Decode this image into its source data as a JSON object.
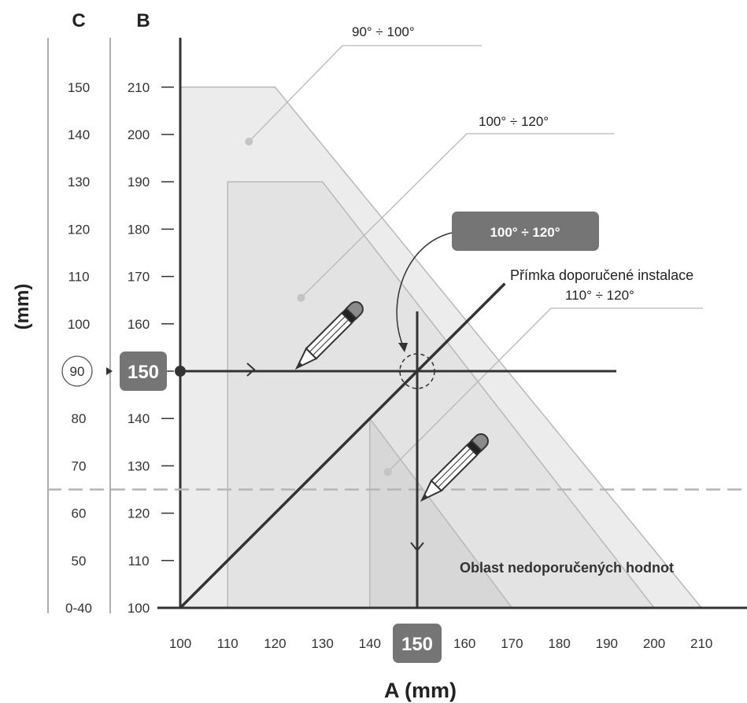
{
  "chart_data": {
    "type": "line",
    "axis_a": {
      "label": "A (mm)",
      "ticks": [
        100,
        110,
        120,
        130,
        140,
        150,
        160,
        170,
        180,
        190,
        200,
        210
      ],
      "range": [
        100,
        220
      ]
    },
    "axis_b": {
      "label": "B",
      "ticks": [
        100,
        110,
        120,
        130,
        140,
        150,
        160,
        170,
        180,
        190,
        200,
        210
      ],
      "range": [
        100,
        215
      ]
    },
    "axis_c": {
      "label": "C",
      "ticks": [
        {
          "label": "0-40",
          "b": 100
        },
        {
          "label": "50",
          "b": 110
        },
        {
          "label": "60",
          "b": 120
        },
        {
          "label": "70",
          "b": 130
        },
        {
          "label": "80",
          "b": 140
        },
        {
          "label": "90",
          "b": 150
        },
        {
          "label": "100",
          "b": 160
        },
        {
          "label": "110",
          "b": 170
        },
        {
          "label": "120",
          "b": 180
        },
        {
          "label": "130",
          "b": 190
        },
        {
          "label": "140",
          "b": 200
        },
        {
          "label": "150",
          "b": 210
        }
      ],
      "highlighted": "90"
    },
    "unit_label": "(mm)",
    "regions": [
      {
        "name": "90° ÷ 100°",
        "polygon": [
          [
            100,
            210
          ],
          [
            120,
            210
          ],
          [
            210,
            100
          ],
          [
            100,
            100
          ]
        ],
        "fill": "#ececec"
      },
      {
        "name": "100° ÷ 120°",
        "polygon": [
          [
            110,
            190
          ],
          [
            130,
            190
          ],
          [
            200,
            100
          ],
          [
            110,
            100
          ]
        ],
        "fill": "#e3e3e3"
      },
      {
        "name": "110° ÷ 120°",
        "polygon": [
          [
            140,
            140
          ],
          [
            170,
            100
          ],
          [
            140,
            100
          ]
        ],
        "fill": "#d7d7d7"
      }
    ],
    "region_labels": [
      {
        "text": "90° ÷ 100°",
        "dot": [
          114.5,
          198.5
        ]
      },
      {
        "text": "100° ÷ 120°",
        "dot": [
          125.5,
          165.5
        ]
      },
      {
        "text": "110° ÷ 120°",
        "dot": [
          143.8,
          128.7
        ]
      }
    ],
    "recommended_line": {
      "label": "Přímka doporučené instalace",
      "from": [
        100,
        100
      ],
      "to": [
        168.5,
        168.5
      ]
    },
    "example": {
      "a": 150,
      "b": 150,
      "a_label": "150",
      "b_label": "150",
      "callout": "100° ÷ 120°"
    },
    "threshold_b": 125,
    "annotation": "Oblast nedoporučených hodnot",
    "colors": {
      "dark": "#333333",
      "badge": "#757575",
      "guide": "#b8b8b8"
    }
  }
}
